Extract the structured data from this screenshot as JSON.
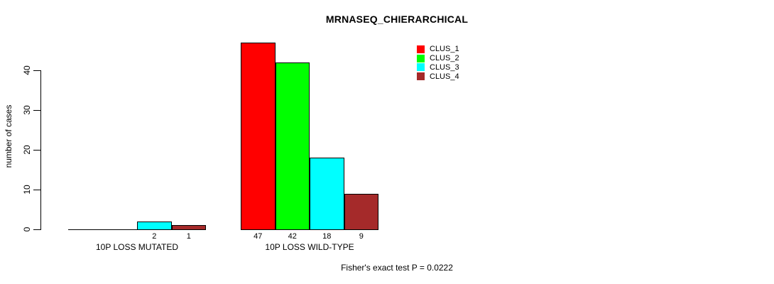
{
  "chart_data": {
    "type": "bar",
    "title": "MRNASEQ_CHIERARCHICAL",
    "ylabel": "number of cases",
    "xlabel": "",
    "categories": [
      "10P LOSS MUTATED",
      "10P LOSS WILD-TYPE"
    ],
    "series": [
      {
        "name": "CLUS_1",
        "color": "#FF0000",
        "values": [
          0,
          47
        ]
      },
      {
        "name": "CLUS_2",
        "color": "#00FF00",
        "values": [
          0,
          42
        ]
      },
      {
        "name": "CLUS_3",
        "color": "#00FFFF",
        "values": [
          2,
          18
        ]
      },
      {
        "name": "CLUS_4",
        "color": "#A52A2A",
        "values": [
          1,
          9
        ]
      }
    ],
    "bar_labels": [
      [
        "",
        "",
        "2",
        "1"
      ],
      [
        "47",
        "42",
        "18",
        "9"
      ]
    ],
    "yticks": [
      0,
      10,
      20,
      30,
      40
    ],
    "ylim": [
      0,
      47
    ],
    "grid": false,
    "legend_position": "top-right",
    "annotation": "Fisher's exact test P = 0.0222"
  }
}
